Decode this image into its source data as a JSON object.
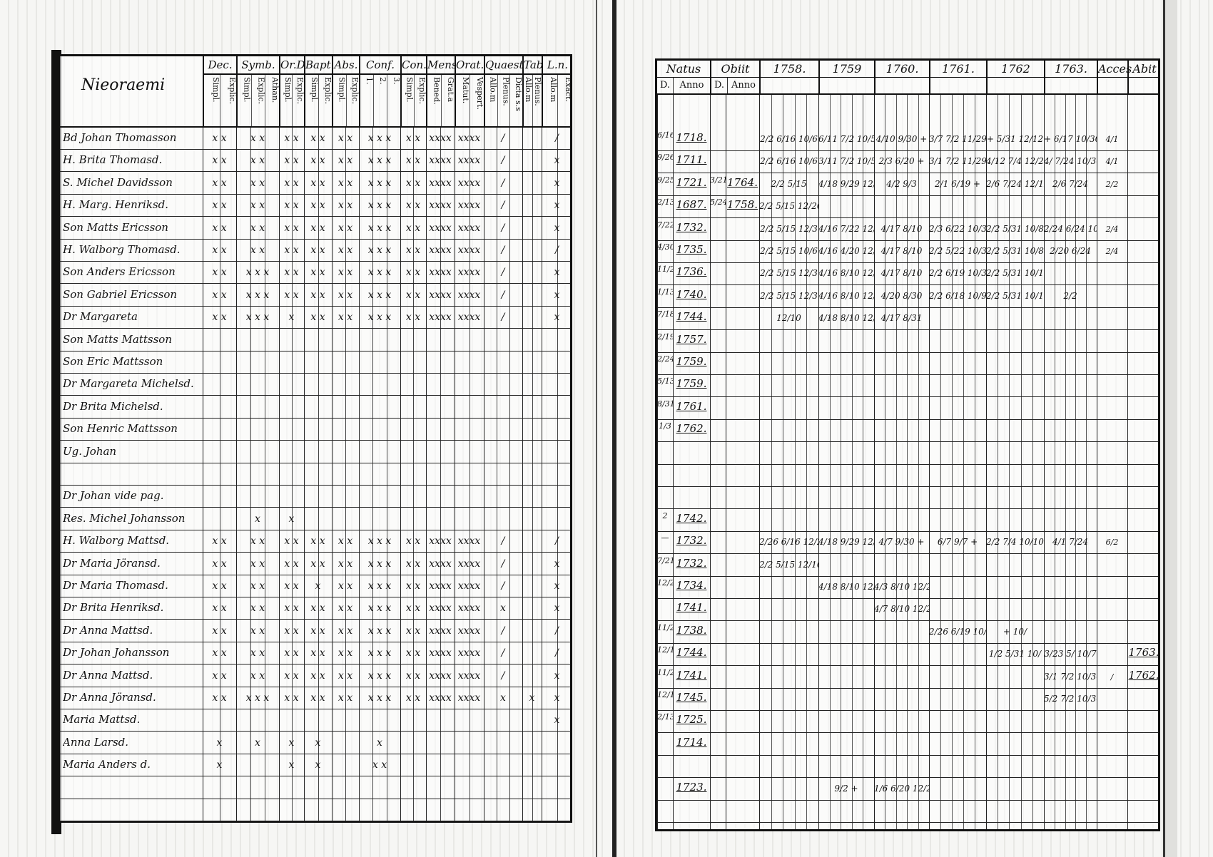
{
  "left_page": {
    "heading": "Nieoraemi",
    "groups": [
      {
        "title": "Dec.",
        "subs": [
          "Simpl.",
          "Explic."
        ]
      },
      {
        "title": "Symb.",
        "subs": [
          "Simpl.",
          "Explic.",
          "Athan."
        ]
      },
      {
        "title": "Or.D",
        "subs": [
          "Simpl.",
          "Explic."
        ]
      },
      {
        "title": "Bapt.",
        "subs": [
          "Simpl.",
          "Explic."
        ]
      },
      {
        "title": "Abs.",
        "subs": [
          "Simpl.",
          "Explic."
        ]
      },
      {
        "title": "Conf.",
        "subs": [
          "1.",
          "2.",
          "3."
        ]
      },
      {
        "title": "Con.D",
        "subs": [
          "Simpl.",
          "Explic."
        ]
      },
      {
        "title": "Mens",
        "subs": [
          "Bened.",
          "Grat.a"
        ]
      },
      {
        "title": "Orat.",
        "subs": [
          "Matut.",
          "Vespert."
        ]
      },
      {
        "title": "Quaest.",
        "subs": [
          "Allo.m",
          "Plenus.",
          "Dicta s.s"
        ]
      },
      {
        "title": "Tab.",
        "subs": [
          "Allo.m",
          "Plenus."
        ]
      },
      {
        "title": "L.n.",
        "subs": [
          "Allo.m",
          "Exact."
        ]
      }
    ]
  },
  "right_page": {
    "groups": [
      {
        "title": "Natus",
        "subs": [
          "D.",
          "Anno"
        ]
      },
      {
        "title": "Obiit",
        "subs": [
          "D.",
          "Anno"
        ]
      },
      {
        "title": "1758.",
        "subs": []
      },
      {
        "title": "1759",
        "subs": []
      },
      {
        "title": "1760.",
        "subs": []
      },
      {
        "title": "1761.",
        "subs": []
      },
      {
        "title": "1762",
        "subs": []
      },
      {
        "title": "1763.",
        "subs": []
      },
      {
        "title": "Acces",
        "subs": []
      },
      {
        "title": "Abit",
        "subs": []
      }
    ]
  },
  "rows": [
    {
      "name": "Bd Johan Thomasson",
      "marks": [
        "x x",
        "x x",
        "x x",
        "x x",
        "x x",
        "x x x",
        "x x",
        "xxxx",
        "xxxx",
        "/",
        "",
        "/"
      ],
      "d": "6/16",
      "year": "1718.",
      "od": "",
      "oy": "",
      "y": [
        "2/2 6/16 10/6",
        "6/11 7/2 10/5",
        "4/10 9/30 +",
        "3/7 7/2 11/29",
        "+ 5/31 12/12",
        "+ 6/17 10/30"
      ],
      "acc": "4/1",
      "abit": ""
    },
    {
      "name": "H. Brita Thomasd.",
      "marks": [
        "x x",
        "x x",
        "x x",
        "x x",
        "x x",
        "x x x",
        "x x",
        "xxxx",
        "xxxx",
        "/",
        "",
        "x"
      ],
      "d": "9/26",
      "year": "1711.",
      "od": "",
      "oy": "",
      "y": [
        "2/2 6/16 10/6",
        "3/11 7/2 10/5",
        "2/3 6/20 +",
        "3/1 7/2 11/29",
        "4/12 7/4 12/26",
        "4/ 7/24 10/30"
      ],
      "acc": "4/1",
      "abit": ""
    },
    {
      "name": "S. Michel Davidsson",
      "marks": [
        "x x",
        "x x",
        "x x",
        "x x",
        "x x",
        "x x x",
        "x x",
        "xxxx",
        "xxxx",
        "/",
        "",
        "x"
      ],
      "d": "9/25",
      "year": "1721.",
      "od": "3/21",
      "oy": "1764.",
      "y": [
        "2/2 5/15",
        "4/18 9/29 12/26",
        "4/2 9/3",
        "2/1 6/19 +",
        "2/6 7/24 12/12",
        "2/6 7/24"
      ],
      "acc": "2/2",
      "abit": ""
    },
    {
      "name": "H. Marg. Henriksd.",
      "marks": [
        "x x",
        "x x",
        "x x",
        "x x",
        "x x",
        "x x x",
        "x x",
        "xxxx",
        "xxxx",
        "/",
        "",
        "x"
      ],
      "d": "2/13",
      "year": "1687.",
      "od": "5/24",
      "oy": "1758.",
      "y": [
        "2/2 5/15 12/26",
        "",
        "",
        "",
        "",
        ""
      ],
      "acc": "",
      "abit": ""
    },
    {
      "name": "Son Matts Ericsson",
      "marks": [
        "x x",
        "x x",
        "x x",
        "x x",
        "x x",
        "x x x",
        "x x",
        "xxxx",
        "xxxx",
        "/",
        "",
        "x"
      ],
      "d": "7/22",
      "year": "1732.",
      "od": "",
      "oy": "",
      "y": [
        "2/2 5/15 12/3",
        "4/16 7/22 12/2",
        "4/17 8/10",
        "2/3 6/22 10/3",
        "2/2 5/31 10/8",
        "2/24 6/24 10/30"
      ],
      "acc": "2/4",
      "abit": ""
    },
    {
      "name": "H. Walborg Thomasd.",
      "marks": [
        "x x",
        "x x",
        "x x",
        "x x",
        "x x",
        "x x x",
        "x x",
        "xxxx",
        "xxxx",
        "/",
        "",
        "/"
      ],
      "d": "4/30",
      "year": "1735.",
      "od": "",
      "oy": "",
      "y": [
        "2/2 5/15 10/6",
        "4/16 4/20 12/2",
        "4/17 8/10",
        "2/2 5/22 10/3",
        "2/2 5/31 10/8",
        "2/20 6/24"
      ],
      "acc": "2/4",
      "abit": ""
    },
    {
      "name": "Son Anders Ericsson",
      "marks": [
        "x x",
        "x x x",
        "x x",
        "x x",
        "x x",
        "x x x",
        "x x",
        "xxxx",
        "xxxx",
        "/",
        "",
        "x"
      ],
      "d": "11/27",
      "year": "1736.",
      "od": "",
      "oy": "",
      "y": [
        "2/2 5/15 12/3",
        "4/16 8/10 12/26",
        "4/17 8/10",
        "2/2 6/19 10/3",
        "2/2 5/31 10/10",
        ""
      ],
      "acc": "",
      "abit": ""
    },
    {
      "name": "Son Gabriel Ericsson",
      "marks": [
        "x x",
        "x x x",
        "x x",
        "x x",
        "x x",
        "x x x",
        "x x",
        "xxxx",
        "xxxx",
        "/",
        "",
        "x"
      ],
      "d": "1/13",
      "year": "1740.",
      "od": "",
      "oy": "",
      "y": [
        "2/2 5/15 12/3",
        "4/16 8/10 12/26",
        "4/20 8/30",
        "2/2 6/18 10/9",
        "2/2 5/31 10/10",
        "2/2"
      ],
      "acc": "",
      "abit": ""
    },
    {
      "name": "Dr Margareta",
      "marks": [
        "x x",
        "x x x",
        "x",
        "x x",
        "x x",
        "x x x",
        "x x",
        "xxxx",
        "xxxx",
        "/",
        "",
        "x"
      ],
      "d": "7/18",
      "year": "1744.",
      "od": "",
      "oy": "",
      "y": [
        "12/10",
        "4/18 8/10 12/26",
        "4/17 8/31",
        "",
        "",
        ""
      ],
      "acc": "",
      "abit": ""
    },
    {
      "name": "Son Matts Mattsson",
      "marks": [
        "",
        "",
        "",
        "",
        "",
        "",
        "",
        "",
        "",
        "",
        "",
        ""
      ],
      "d": "2/19",
      "year": "1757.",
      "od": "",
      "oy": "",
      "y": [
        "",
        "",
        "",
        "",
        "",
        ""
      ],
      "acc": "",
      "abit": ""
    },
    {
      "name": "Son Eric Mattsson",
      "marks": [
        "",
        "",
        "",
        "",
        "",
        "",
        "",
        "",
        "",
        "",
        "",
        ""
      ],
      "d": "2/24",
      "year": "1759.",
      "od": "",
      "oy": "",
      "y": [
        "",
        "",
        "",
        "",
        "",
        ""
      ],
      "acc": "",
      "abit": ""
    },
    {
      "name": "Dr Margareta Michelsd.",
      "marks": [
        "",
        "",
        "",
        "",
        "",
        "",
        "",
        "",
        "",
        "",
        "",
        ""
      ],
      "d": "5/13",
      "year": "1759.",
      "od": "",
      "oy": "",
      "y": [
        "",
        "",
        "",
        "",
        "",
        ""
      ],
      "acc": "",
      "abit": ""
    },
    {
      "name": "Dr Brita Michelsd.",
      "marks": [
        "",
        "",
        "",
        "",
        "",
        "",
        "",
        "",
        "",
        "",
        "",
        ""
      ],
      "d": "8/31",
      "year": "1761.",
      "od": "",
      "oy": "",
      "y": [
        "",
        "",
        "",
        "",
        "",
        ""
      ],
      "acc": "",
      "abit": ""
    },
    {
      "name": "Son Henric Mattsson",
      "marks": [
        "",
        "",
        "",
        "",
        "",
        "",
        "",
        "",
        "",
        "",
        "",
        ""
      ],
      "d": "1/3",
      "year": "1762.",
      "od": "",
      "oy": "",
      "y": [
        "",
        "",
        "",
        "",
        "",
        ""
      ],
      "acc": "",
      "abit": ""
    },
    {
      "name": "Ug. Johan",
      "marks": [
        "",
        "",
        "",
        "",
        "",
        "",
        "",
        "",
        "",
        "",
        "",
        ""
      ],
      "d": "",
      "year": "",
      "od": "",
      "oy": "",
      "y": [
        "",
        "",
        "",
        "",
        "",
        ""
      ],
      "acc": "",
      "abit": ""
    },
    {
      "name": "",
      "marks": [
        "",
        "",
        "",
        "",
        "",
        "",
        "",
        "",
        "",
        "",
        "",
        ""
      ],
      "d": "",
      "year": "",
      "od": "",
      "oy": "",
      "y": [
        "",
        "",
        "",
        "",
        "",
        ""
      ],
      "acc": "",
      "abit": ""
    },
    {
      "name": "Dr Johan vide pag.",
      "marks": [
        "",
        "",
        "",
        "",
        "",
        "",
        "",
        "",
        "",
        "",
        "",
        ""
      ],
      "d": "",
      "year": "",
      "od": "",
      "oy": "",
      "y": [
        "",
        "",
        "",
        "",
        "",
        ""
      ],
      "acc": "",
      "abit": ""
    },
    {
      "name": "Res. Michel Johansson",
      "marks": [
        "",
        "x",
        "x",
        "",
        "",
        "",
        "",
        "",
        "",
        "",
        "",
        ""
      ],
      "d": "2",
      "year": "1742.",
      "od": "",
      "oy": "",
      "y": [
        "",
        "",
        "",
        "",
        "",
        ""
      ],
      "acc": "",
      "abit": ""
    },
    {
      "name": "H. Walborg Mattsd.",
      "marks": [
        "x x",
        "x x",
        "x x",
        "x x",
        "x x",
        "x x x",
        "x x",
        "xxxx",
        "xxxx",
        "/",
        "",
        "/"
      ],
      "d": "—",
      "year": "1732.",
      "od": "",
      "oy": "",
      "y": [
        "2/26 6/16 12/26",
        "4/18 9/29 12/26",
        "4/7 9/30 +",
        "6/7 9/7 +",
        "2/2 7/4 10/10",
        "4/1 7/24"
      ],
      "acc": "6/2",
      "abit": ""
    },
    {
      "name": "Dr Maria Jöransd.",
      "marks": [
        "x x",
        "x x",
        "x x",
        "x x",
        "x x",
        "x x x",
        "x x",
        "xxxx",
        "xxxx",
        "/",
        "",
        "x"
      ],
      "d": "7/21",
      "year": "1732.",
      "od": "",
      "oy": "",
      "y": [
        "2/2 5/15 12/10",
        "",
        "",
        "",
        "",
        ""
      ],
      "acc": "",
      "abit": ""
    },
    {
      "name": "Dr Maria Thomasd.",
      "marks": [
        "x x",
        "x x",
        "x x",
        "x",
        "x x",
        "x x x",
        "x x",
        "xxxx",
        "xxxx",
        "/",
        "",
        "x"
      ],
      "d": "12/25",
      "year": "1734.",
      "od": "",
      "oy": "",
      "y": [
        "",
        "4/18 8/10 12/26",
        "4/3 8/10 12/26",
        "",
        "",
        ""
      ],
      "acc": "",
      "abit": ""
    },
    {
      "name": "Dr Brita Henriksd.",
      "marks": [
        "x x",
        "x x",
        "x x",
        "x x",
        "x x",
        "x x x",
        "x x",
        "xxxx",
        "xxxx",
        "x",
        "",
        "x"
      ],
      "d": "",
      "year": "1741.",
      "od": "",
      "oy": "",
      "y": [
        "",
        "",
        "4/7 8/10 12/26",
        "",
        "",
        ""
      ],
      "acc": "",
      "abit": ""
    },
    {
      "name": "Dr Anna Mattsd.",
      "marks": [
        "x x",
        "x x",
        "x x",
        "x x",
        "x x",
        "x x x",
        "x x",
        "xxxx",
        "xxxx",
        "/",
        "",
        "/"
      ],
      "d": "11/2",
      "year": "1738.",
      "od": "",
      "oy": "",
      "y": [
        "",
        "",
        "",
        "2/26 6/19 10/4",
        "+ 10/",
        ""
      ],
      "acc": "",
      "abit": ""
    },
    {
      "name": "Dr Johan Johansson",
      "marks": [
        "x x",
        "x x",
        "x x",
        "x x",
        "x x",
        "x x x",
        "x x",
        "xxxx",
        "xxxx",
        "/",
        "",
        "/"
      ],
      "d": "12/16",
      "year": "1744.",
      "od": "",
      "oy": "",
      "y": [
        "",
        "",
        "",
        "",
        "1/2 5/31 10/",
        "3/23 5/ 10/7"
      ],
      "acc": "",
      "abit": "1763."
    },
    {
      "name": "Dr Anna Mattsd.",
      "marks": [
        "x x",
        "x x",
        "x x",
        "x x",
        "x x",
        "x x x",
        "x x",
        "xxxx",
        "xxxx",
        "/",
        "",
        "x"
      ],
      "d": "11/20",
      "year": "1741.",
      "od": "",
      "oy": "",
      "y": [
        "",
        "",
        "",
        "",
        "",
        "3/1 7/2 10/30"
      ],
      "acc": "/",
      "abit": "1762."
    },
    {
      "name": "Dr Anna Jöransd.",
      "marks": [
        "x x",
        "x x x",
        "x x",
        "x x",
        "x x",
        "x x x",
        "x x",
        "xxxx",
        "xxxx",
        "x",
        "x",
        "x"
      ],
      "d": "12/18",
      "year": "1745.",
      "od": "",
      "oy": "",
      "y": [
        "",
        "",
        "",
        "",
        "",
        "5/2 7/2 10/30"
      ],
      "acc": "",
      "abit": ""
    },
    {
      "name": "Maria Mattsd.",
      "marks": [
        "",
        "",
        "",
        "",
        "",
        "",
        "",
        "",
        "",
        "",
        "",
        "x"
      ],
      "d": "2/13",
      "year": "1725.",
      "od": "",
      "oy": "",
      "y": [
        "",
        "",
        "",
        "",
        "",
        ""
      ],
      "acc": "",
      "abit": ""
    },
    {
      "name": "Anna Larsd.",
      "marks": [
        "x",
        "x",
        "x",
        "x",
        "",
        "x",
        "",
        "",
        "",
        "",
        "",
        ""
      ],
      "d": "",
      "year": "1714.",
      "od": "",
      "oy": "",
      "y": [
        "",
        "",
        "",
        "",
        "",
        ""
      ],
      "acc": "",
      "abit": ""
    },
    {
      "name": "Maria Anders d.",
      "marks": [
        "x",
        "",
        "x",
        "x",
        "",
        "x x",
        "",
        "",
        "",
        "",
        "",
        ""
      ],
      "d": "",
      "year": "",
      "od": "",
      "oy": "",
      "y": [
        "",
        "",
        "",
        "",
        "",
        ""
      ],
      "acc": "",
      "abit": ""
    },
    {
      "name": "",
      "marks": [
        "",
        "",
        "",
        "",
        "",
        "",
        "",
        "",
        "",
        "",
        "",
        ""
      ],
      "d": "",
      "year": "1723.",
      "od": "",
      "oy": "",
      "y": [
        "",
        "9/2 +",
        "1/6 6/20 12/26",
        "",
        "",
        ""
      ],
      "acc": "",
      "abit": ""
    },
    {
      "name": "",
      "marks": [
        "",
        "",
        "",
        "",
        "",
        "",
        "",
        "",
        "",
        "",
        "",
        ""
      ],
      "d": "",
      "year": "",
      "od": "",
      "oy": "",
      "y": [
        "",
        "",
        "",
        "",
        "",
        ""
      ],
      "acc": "",
      "abit": ""
    }
  ]
}
